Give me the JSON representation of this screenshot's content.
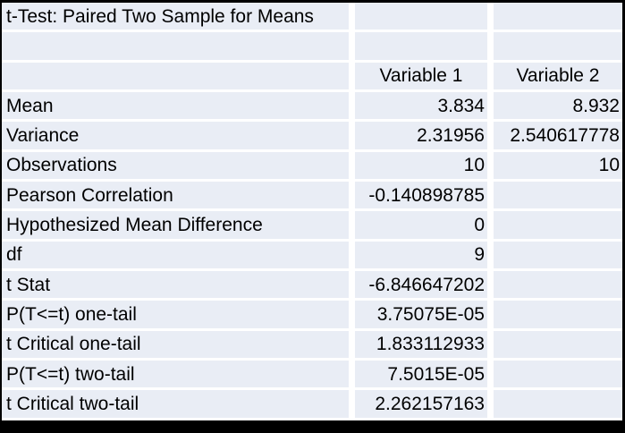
{
  "chart_data": {
    "type": "table",
    "title": "t-Test: Paired Two Sample for Means",
    "columns": [
      "",
      "Variable 1",
      "Variable 2"
    ],
    "rows": [
      {
        "label": "Mean",
        "values": [
          "3.834",
          "8.932"
        ]
      },
      {
        "label": "Variance",
        "values": [
          "2.31956",
          "2.540617778"
        ]
      },
      {
        "label": "Observations",
        "values": [
          "10",
          "10"
        ]
      },
      {
        "label": "Pearson Correlation",
        "values": [
          "-0.140898785",
          ""
        ]
      },
      {
        "label": "Hypothesized Mean Difference",
        "values": [
          "0",
          ""
        ]
      },
      {
        "label": "df",
        "values": [
          "9",
          ""
        ]
      },
      {
        "label": "t Stat",
        "values": [
          "-6.846647202",
          ""
        ]
      },
      {
        "label": "P(T<=t) one-tail",
        "values": [
          "3.75075E-05",
          ""
        ]
      },
      {
        "label": "t Critical one-tail",
        "values": [
          "1.833112933",
          ""
        ]
      },
      {
        "label": "P(T<=t) two-tail",
        "values": [
          "7.5015E-05",
          ""
        ]
      },
      {
        "label": "t Critical two-tail",
        "values": [
          "2.262157163",
          ""
        ]
      }
    ],
    "layout": {
      "grid": "white cell separators on light blue cells",
      "legend_position": "none"
    }
  },
  "colors": {
    "cell_bg": "#E9EDF5",
    "separator": "#FFFFFF",
    "frame_border": "#000000",
    "text": "#000000"
  }
}
